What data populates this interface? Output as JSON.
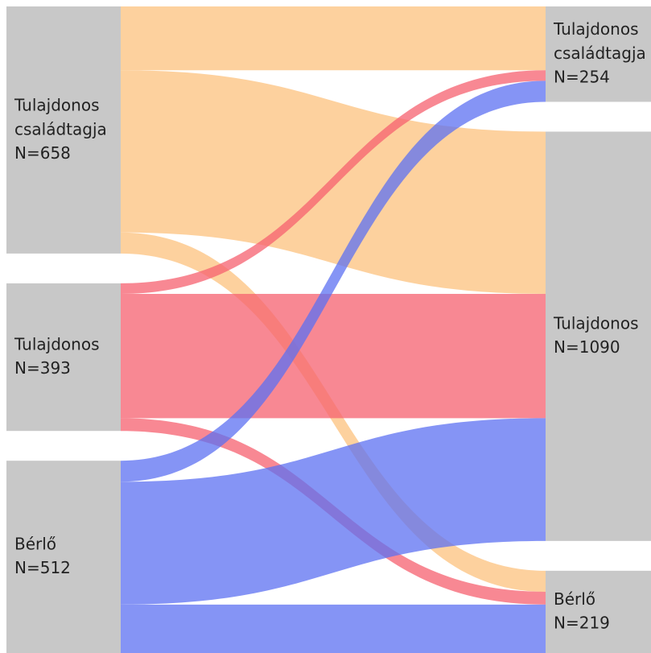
{
  "chart_data": {
    "type": "sankey",
    "nodes": [
      {
        "name": "Tulajdonos családtagja",
        "value": 658,
        "value_label": "N=658",
        "column": 0
      },
      {
        "name": "Tulajdonos",
        "value": 393,
        "value_label": "N=393",
        "column": 0
      },
      {
        "name": "Bérlő",
        "value": 512,
        "value_label": "N=512",
        "column": 0
      },
      {
        "name": "Tulajdonos családtagja",
        "value": 254,
        "value_label": "N=254",
        "column": 1
      },
      {
        "name": "Tulajdonos",
        "value": 1090,
        "value_label": "N=1090",
        "column": 1
      },
      {
        "name": "Bérlő",
        "value": 219,
        "value_label": "N=219",
        "column": 1
      }
    ],
    "node_color": "#c8c8c8",
    "flows": [
      {
        "source": 0,
        "target": 3,
        "value": 170,
        "color": "#fcc27e"
      },
      {
        "source": 0,
        "target": 4,
        "value": 432,
        "color": "#fcc27e"
      },
      {
        "source": 0,
        "target": 5,
        "value": 56,
        "color": "#fcc27e"
      },
      {
        "source": 1,
        "target": 3,
        "value": 28,
        "color": "#f5606f"
      },
      {
        "source": 1,
        "target": 4,
        "value": 331,
        "color": "#f5606f"
      },
      {
        "source": 1,
        "target": 5,
        "value": 34,
        "color": "#f5606f"
      },
      {
        "source": 2,
        "target": 3,
        "value": 56,
        "color": "#5c70f2"
      },
      {
        "source": 2,
        "target": 4,
        "value": 327,
        "color": "#5c70f2"
      },
      {
        "source": 2,
        "target": 5,
        "value": 129,
        "color": "#5c70f2"
      }
    ]
  }
}
